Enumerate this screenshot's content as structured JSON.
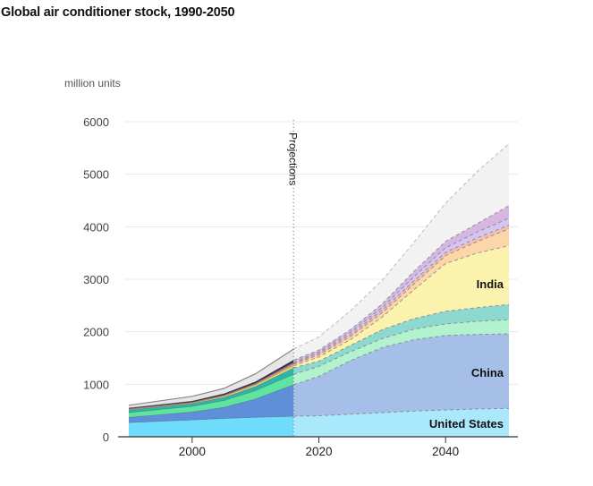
{
  "chart_data": {
    "type": "area",
    "stacked": true,
    "title": "Global air conditioner stock, 1990-2050",
    "ylabel": "million units",
    "xlabel": "",
    "ylim": [
      0,
      6000
    ],
    "xlim": [
      1990,
      2050
    ],
    "yticks": [
      0,
      1000,
      2000,
      3000,
      4000,
      5000,
      6000
    ],
    "ytick_labels": [
      "0",
      "1000",
      "2000",
      "3000",
      "4000",
      "5000",
      "6000"
    ],
    "xticks": [
      2000,
      2020,
      2040
    ],
    "xtick_labels": [
      "2000",
      "2020",
      "2040"
    ],
    "grid": true,
    "projection_start": 2016,
    "projection_label": "Projections",
    "x": [
      1990,
      2000,
      2005,
      2010,
      2016,
      2020,
      2025,
      2030,
      2035,
      2040,
      2045,
      2050
    ],
    "series": [
      {
        "name": "United States",
        "label": "United States",
        "color": "#6fdcfb",
        "proj_color": "#a9e9fb",
        "values": [
          270,
          320,
          350,
          370,
          390,
          400,
          430,
          460,
          490,
          510,
          530,
          540
        ]
      },
      {
        "name": "China",
        "label": "China",
        "color": "#5f8fd9",
        "proj_color": "#a5bfe8",
        "values": [
          100,
          150,
          210,
          350,
          600,
          750,
          1020,
          1240,
          1360,
          1420,
          1420,
          1420
        ]
      },
      {
        "name": "",
        "label": "",
        "color": "#5fe3a1",
        "proj_color": "#b3f2cf",
        "values": [
          90,
          110,
          130,
          160,
          200,
          190,
          170,
          170,
          200,
          220,
          250,
          270
        ]
      },
      {
        "name": "",
        "label": "",
        "color": "#2fb5a6",
        "proj_color": "#8dd9cf",
        "values": [
          50,
          50,
          60,
          80,
          120,
          100,
          120,
          170,
          200,
          240,
          260,
          290
        ]
      },
      {
        "name": "India",
        "label": "India",
        "color": "#f3e37c",
        "proj_color": "#fbf3ad",
        "values": [
          10,
          15,
          20,
          30,
          40,
          80,
          110,
          240,
          550,
          910,
          1040,
          1120
        ]
      },
      {
        "name": "",
        "label": "",
        "color": "#f5b96b",
        "proj_color": "#fbd6a8",
        "values": [
          10,
          10,
          15,
          15,
          30,
          40,
          60,
          80,
          110,
          150,
          220,
          320
        ]
      },
      {
        "name": "",
        "label": "",
        "color": "#e88a7c",
        "proj_color": "#f6bdb3",
        "values": [
          5,
          5,
          7,
          10,
          20,
          30,
          40,
          50,
          60,
          60,
          70,
          70
        ]
      },
      {
        "name": "",
        "label": "",
        "color": "#9a7fd6",
        "proj_color": "#d4c6f3",
        "values": [
          5,
          5,
          8,
          10,
          20,
          25,
          40,
          50,
          80,
          90,
          110,
          130
        ]
      },
      {
        "name": "",
        "label": "",
        "color": "#3a2a3f",
        "proj_color": "#d6b7e2",
        "values": [
          10,
          15,
          20,
          25,
          40,
          35,
          50,
          70,
          100,
          120,
          160,
          240
        ]
      },
      {
        "name": "",
        "label": "",
        "color": "#e6e6e6",
        "proj_color": "#f2f2f2",
        "values": [
          50,
          90,
          100,
          150,
          210,
          250,
          360,
          450,
          550,
          730,
          990,
          1180
        ]
      }
    ]
  }
}
